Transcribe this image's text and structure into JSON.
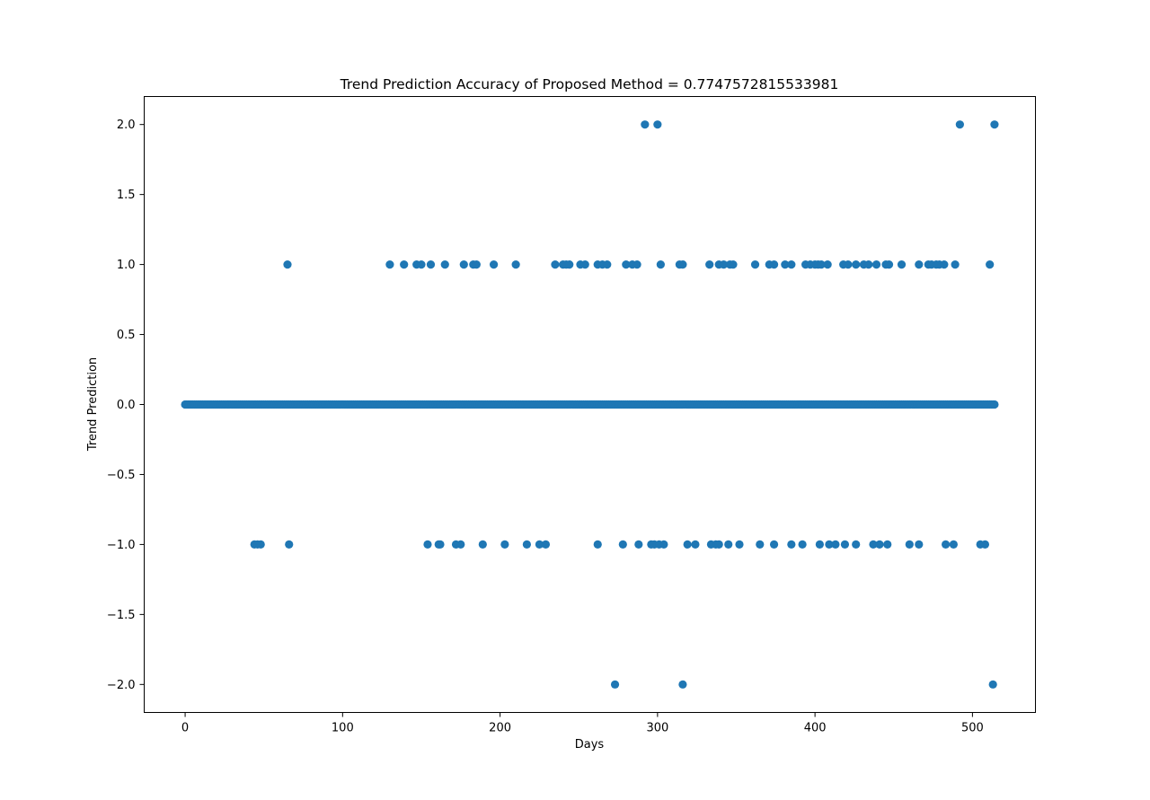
{
  "chart_data": {
    "type": "scatter",
    "title": "Trend Prediction Accuracy of Proposed Method = 0.7747572815533981",
    "xlabel": "Days",
    "ylabel": "Trend Prediction",
    "xlim": [
      -26,
      540
    ],
    "ylim": [
      -2.2,
      2.2
    ],
    "xticks": [
      0,
      100,
      200,
      300,
      400,
      500
    ],
    "xtick_labels": [
      "0",
      "100",
      "200",
      "300",
      "400",
      "500"
    ],
    "yticks": [
      2.0,
      1.5,
      1.0,
      0.5,
      0.0,
      -0.5,
      -1.0,
      -1.5,
      -2.0
    ],
    "ytick_labels": [
      "2.0",
      "1.5",
      "1.0",
      "0.5",
      "0.0",
      "−0.5",
      "−1.0",
      "−1.5",
      "−2.0"
    ],
    "marker_color": "#1f77b4",
    "grid": false,
    "points_zero_x_range": [
      0,
      514
    ],
    "points": [
      [
        292,
        2
      ],
      [
        300,
        2
      ],
      [
        492,
        2
      ],
      [
        514,
        2
      ],
      [
        65,
        1
      ],
      [
        130,
        1
      ],
      [
        139,
        1
      ],
      [
        147,
        1
      ],
      [
        150,
        1
      ],
      [
        156,
        1
      ],
      [
        165,
        1
      ],
      [
        177,
        1
      ],
      [
        183,
        1
      ],
      [
        185,
        1
      ],
      [
        196,
        1
      ],
      [
        210,
        1
      ],
      [
        235,
        1
      ],
      [
        240,
        1
      ],
      [
        242,
        1
      ],
      [
        244,
        1
      ],
      [
        251,
        1
      ],
      [
        254,
        1
      ],
      [
        262,
        1
      ],
      [
        265,
        1
      ],
      [
        268,
        1
      ],
      [
        280,
        1
      ],
      [
        284,
        1
      ],
      [
        287,
        1
      ],
      [
        302,
        1
      ],
      [
        314,
        1
      ],
      [
        316,
        1
      ],
      [
        333,
        1
      ],
      [
        339,
        1
      ],
      [
        342,
        1
      ],
      [
        346,
        1
      ],
      [
        348,
        1
      ],
      [
        362,
        1
      ],
      [
        371,
        1
      ],
      [
        374,
        1
      ],
      [
        381,
        1
      ],
      [
        385,
        1
      ],
      [
        394,
        1
      ],
      [
        397,
        1
      ],
      [
        400,
        1
      ],
      [
        402,
        1
      ],
      [
        404,
        1
      ],
      [
        408,
        1
      ],
      [
        418,
        1
      ],
      [
        421,
        1
      ],
      [
        426,
        1
      ],
      [
        431,
        1
      ],
      [
        434,
        1
      ],
      [
        439,
        1
      ],
      [
        445,
        1
      ],
      [
        447,
        1
      ],
      [
        455,
        1
      ],
      [
        466,
        1
      ],
      [
        472,
        1
      ],
      [
        474,
        1
      ],
      [
        477,
        1
      ],
      [
        479,
        1
      ],
      [
        482,
        1
      ],
      [
        489,
        1
      ],
      [
        511,
        1
      ],
      [
        44,
        -1
      ],
      [
        46,
        -1
      ],
      [
        48,
        -1
      ],
      [
        66,
        -1
      ],
      [
        154,
        -1
      ],
      [
        161,
        -1
      ],
      [
        162,
        -1
      ],
      [
        172,
        -1
      ],
      [
        175,
        -1
      ],
      [
        189,
        -1
      ],
      [
        203,
        -1
      ],
      [
        217,
        -1
      ],
      [
        225,
        -1
      ],
      [
        229,
        -1
      ],
      [
        262,
        -1
      ],
      [
        278,
        -1
      ],
      [
        288,
        -1
      ],
      [
        296,
        -1
      ],
      [
        298,
        -1
      ],
      [
        301,
        -1
      ],
      [
        304,
        -1
      ],
      [
        319,
        -1
      ],
      [
        324,
        -1
      ],
      [
        334,
        -1
      ],
      [
        337,
        -1
      ],
      [
        339,
        -1
      ],
      [
        345,
        -1
      ],
      [
        352,
        -1
      ],
      [
        365,
        -1
      ],
      [
        374,
        -1
      ],
      [
        385,
        -1
      ],
      [
        392,
        -1
      ],
      [
        403,
        -1
      ],
      [
        409,
        -1
      ],
      [
        413,
        -1
      ],
      [
        419,
        -1
      ],
      [
        426,
        -1
      ],
      [
        437,
        -1
      ],
      [
        441,
        -1
      ],
      [
        446,
        -1
      ],
      [
        460,
        -1
      ],
      [
        466,
        -1
      ],
      [
        483,
        -1
      ],
      [
        488,
        -1
      ],
      [
        505,
        -1
      ],
      [
        508,
        -1
      ],
      [
        273,
        -2
      ],
      [
        316,
        -2
      ],
      [
        513,
        -2
      ]
    ]
  }
}
